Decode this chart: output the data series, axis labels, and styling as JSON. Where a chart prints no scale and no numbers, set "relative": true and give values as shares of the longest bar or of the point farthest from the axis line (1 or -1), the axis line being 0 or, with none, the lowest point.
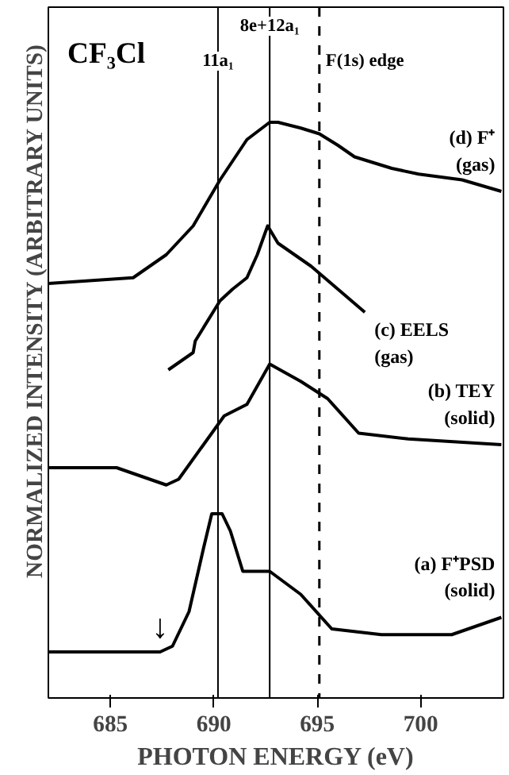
{
  "chart_data": {
    "type": "line",
    "relative": true,
    "xlabel": "PHOTON ENERGY (eV)",
    "ylabel": "NORMALIZED INTENSITY (ARBITRARY UNITS)",
    "xlim": [
      682,
      704
    ],
    "xticks": [
      685,
      690,
      695,
      700
    ],
    "grid": false,
    "tick_labels": "x",
    "annotations": [
      "CF₃Cl",
      {
        "text": "↓",
        "x": 687.4,
        "y": 0.08
      }
    ],
    "ref_lines": [
      {
        "axis": "x",
        "value": 690.2,
        "label": "11a₁"
      },
      {
        "axis": "x",
        "value": 692.7,
        "label": "8e+12a₁"
      },
      {
        "axis": "x",
        "value": 695.1,
        "label": "F(1s) edge",
        "line_style": "dashed"
      }
    ],
    "series": [
      {
        "name": "(d) F⁺ (gas)",
        "color": "#000000",
        "x": [
          682,
          686.1,
          687.7,
          689.0,
          690.3,
          691.6,
          692.7,
          693.1,
          694.2,
          695.1,
          696.0,
          696.8,
          698.6,
          699.9,
          702.0,
          703.9
        ],
        "values": [
          0.72,
          0.73,
          0.77,
          0.82,
          0.9,
          0.97,
          1.0,
          1.0,
          0.99,
          0.98,
          0.96,
          0.94,
          0.92,
          0.91,
          0.9,
          0.88
        ]
      },
      {
        "name": "(c) EELS (gas)",
        "color": "#000000",
        "x": [
          687.8,
          689.0,
          689.1,
          690.3,
          690.9,
          691.6,
          692.1,
          692.6,
          693.1,
          694.7,
          696.0,
          697.3
        ],
        "values": [
          0.57,
          0.6,
          0.62,
          0.69,
          0.71,
          0.73,
          0.77,
          0.82,
          0.79,
          0.75,
          0.71,
          0.67
        ]
      },
      {
        "name": "(b) TEY (solid)",
        "color": "#000000",
        "x": [
          682,
          685.3,
          687.7,
          688.3,
          689.5,
          690.5,
          691.6,
          692.7,
          694.2,
          695.5,
          697.0,
          699.4,
          703.9
        ],
        "values": [
          0.4,
          0.4,
          0.37,
          0.38,
          0.44,
          0.49,
          0.51,
          0.58,
          0.55,
          0.52,
          0.46,
          0.45,
          0.44
        ]
      },
      {
        "name": "(a) F⁺PSD (solid)",
        "color": "#000000",
        "x": [
          682,
          687.4,
          688.0,
          688.8,
          689.5,
          689.9,
          690.4,
          690.8,
          691.4,
          692.1,
          692.7,
          694.2,
          695.7,
          698.1,
          701.5,
          703.9
        ],
        "values": [
          0.08,
          0.08,
          0.09,
          0.15,
          0.26,
          0.32,
          0.32,
          0.29,
          0.22,
          0.22,
          0.22,
          0.18,
          0.12,
          0.11,
          0.11,
          0.14
        ]
      }
    ]
  }
}
